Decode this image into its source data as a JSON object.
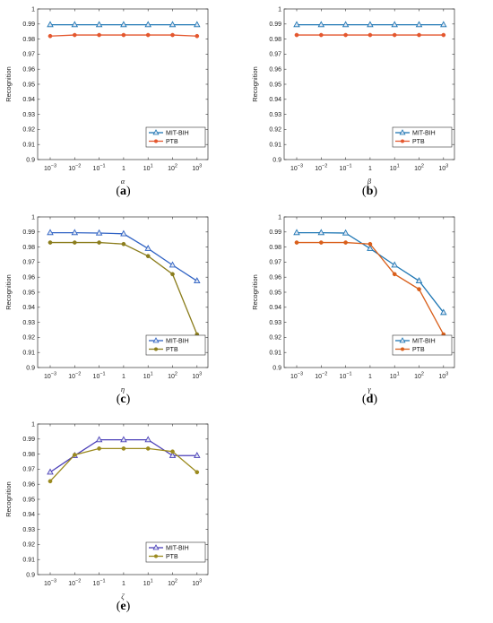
{
  "chart_data": [
    {
      "type": "line",
      "panel_label": "a",
      "xlabel": "α",
      "ylabel": "Recognition",
      "x": [
        "10^-3",
        "10^-2",
        "10^-1",
        "1",
        "10^1",
        "10^2",
        "10^3"
      ],
      "ylim": [
        0.9,
        1.0
      ],
      "yticks": [
        0.9,
        0.91,
        0.92,
        0.93,
        0.94,
        0.95,
        0.96,
        0.97,
        0.98,
        0.99,
        1
      ],
      "legend_position": "bottom-right",
      "series": [
        {
          "name": "MIT-BIH",
          "color": "#1f77b4",
          "marker": "triangle",
          "values": [
            0.9895,
            0.9895,
            0.9895,
            0.9895,
            0.9895,
            0.9895,
            0.9895
          ]
        },
        {
          "name": "PTB",
          "color": "#e4572e",
          "marker": "circle",
          "values": [
            0.982,
            0.9827,
            0.9827,
            0.9827,
            0.9827,
            0.9827,
            0.982
          ]
        }
      ]
    },
    {
      "type": "line",
      "panel_label": "b",
      "xlabel": "β",
      "ylabel": "Recognition",
      "x": [
        "10^-3",
        "10^-2",
        "10^-1",
        "1",
        "10^1",
        "10^2",
        "10^3"
      ],
      "ylim": [
        0.9,
        1.0
      ],
      "yticks": [
        0.9,
        0.91,
        0.92,
        0.93,
        0.94,
        0.95,
        0.96,
        0.97,
        0.98,
        0.99,
        1
      ],
      "legend_position": "bottom-right",
      "series": [
        {
          "name": "MIT-BIH",
          "color": "#1f77b4",
          "marker": "triangle",
          "values": [
            0.9895,
            0.9895,
            0.9895,
            0.9895,
            0.9895,
            0.9895,
            0.9895
          ]
        },
        {
          "name": "PTB",
          "color": "#e4572e",
          "marker": "circle",
          "values": [
            0.9827,
            0.9827,
            0.9827,
            0.9827,
            0.9827,
            0.9827,
            0.9827
          ]
        }
      ]
    },
    {
      "type": "line",
      "panel_label": "c",
      "xlabel": "η",
      "ylabel": "Recognition",
      "x": [
        "10^-3",
        "10^-2",
        "10^-1",
        "1",
        "10^1",
        "10^2",
        "10^3"
      ],
      "ylim": [
        0.9,
        1.0
      ],
      "yticks": [
        0.9,
        0.91,
        0.92,
        0.93,
        0.94,
        0.95,
        0.96,
        0.97,
        0.98,
        0.99,
        1
      ],
      "legend_position": "bottom-right",
      "series": [
        {
          "name": "MIT-BIH",
          "color": "#2f62c4",
          "marker": "triangle",
          "values": [
            0.9895,
            0.9895,
            0.9893,
            0.9888,
            0.979,
            0.968,
            0.9575
          ]
        },
        {
          "name": "PTB",
          "color": "#8b7d1c",
          "marker": "circle",
          "values": [
            0.983,
            0.983,
            0.983,
            0.982,
            0.974,
            0.962,
            0.922
          ]
        }
      ]
    },
    {
      "type": "line",
      "panel_label": "d",
      "xlabel": "γ",
      "ylabel": "Recognition",
      "x": [
        "10^-3",
        "10^-2",
        "10^-1",
        "1",
        "10^1",
        "10^2",
        "10^3"
      ],
      "ylim": [
        0.9,
        1.0
      ],
      "yticks": [
        0.9,
        0.91,
        0.92,
        0.93,
        0.94,
        0.95,
        0.96,
        0.97,
        0.98,
        0.99,
        1
      ],
      "legend_position": "bottom-right",
      "series": [
        {
          "name": "MIT-BIH",
          "color": "#1f77b4",
          "marker": "triangle",
          "values": [
            0.9895,
            0.9895,
            0.9893,
            0.979,
            0.968,
            0.9575,
            0.9365
          ]
        },
        {
          "name": "PTB",
          "color": "#d95f1b",
          "marker": "circle",
          "values": [
            0.983,
            0.983,
            0.983,
            0.982,
            0.962,
            0.952,
            0.922
          ]
        }
      ]
    },
    {
      "type": "line",
      "panel_label": "e",
      "xlabel": "ζ",
      "ylabel": "Recognition",
      "x": [
        "10^-3",
        "10^-2",
        "10^-1",
        "1",
        "10^1",
        "10^2",
        "10^3"
      ],
      "ylim": [
        0.9,
        1.0
      ],
      "yticks": [
        0.9,
        0.91,
        0.92,
        0.93,
        0.94,
        0.95,
        0.96,
        0.97,
        0.98,
        0.99,
        1
      ],
      "legend_position": "bottom-right",
      "series": [
        {
          "name": "MIT-BIH",
          "color": "#4b3fb8",
          "marker": "triangle",
          "values": [
            0.968,
            0.979,
            0.9895,
            0.9895,
            0.9895,
            0.979,
            0.979
          ]
        },
        {
          "name": "PTB",
          "color": "#9b8a1e",
          "marker": "circle",
          "values": [
            0.962,
            0.9795,
            0.9837,
            0.9837,
            0.9837,
            0.9817,
            0.968
          ]
        }
      ]
    }
  ]
}
